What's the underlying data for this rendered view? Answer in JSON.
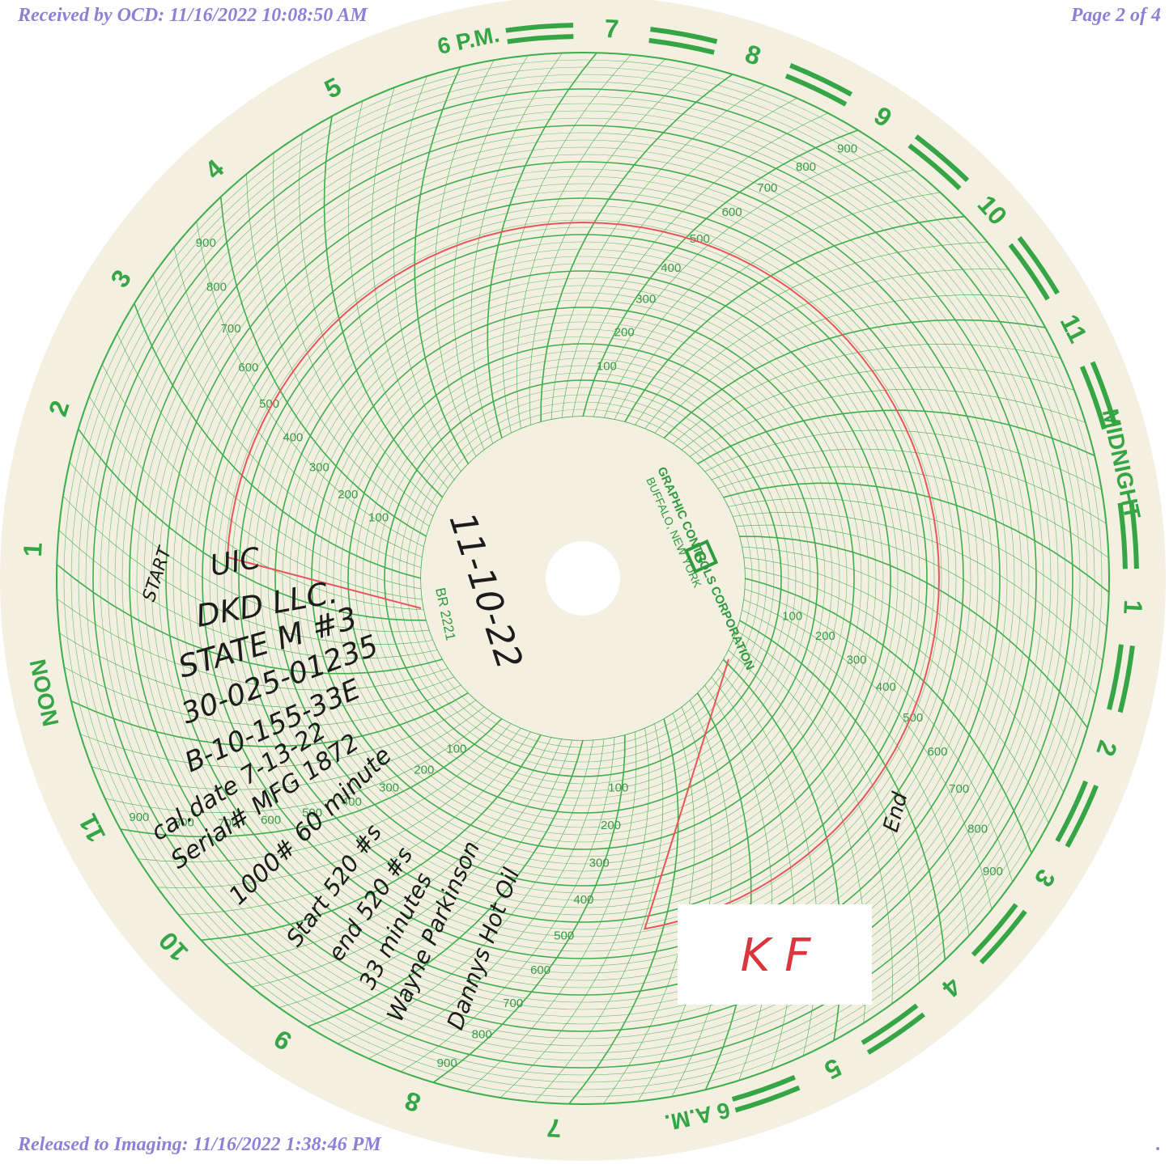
{
  "header": {
    "received": "Received by OCD: 11/16/2022 10:08:50 AM",
    "page": "Page 2 of 4"
  },
  "footer": {
    "released": "Released to Imaging: 11/16/2022 1:38:46 PM",
    "dot": "."
  },
  "chart": {
    "manufacturer_line1": "GRAPHIC CONTROLS CORPORATION",
    "manufacturer_line2": "BUFFALO, NEW YORK",
    "model": "BR 2221",
    "logo_letter": "G",
    "hour_labels": [
      "6 P.M.",
      "7",
      "8",
      "9",
      "10",
      "11",
      "MIDNIGHT",
      "1",
      "2",
      "3",
      "4",
      "5",
      "6 A.M.",
      "7",
      "8",
      "9",
      "10",
      "11",
      "NOON",
      "1",
      "2",
      "3",
      "4",
      "5"
    ],
    "scale_labels": [
      "100",
      "200",
      "300",
      "400",
      "500",
      "600",
      "700",
      "800",
      "900"
    ],
    "colors": {
      "grid": "#3fae4d",
      "trace": "#e8555a",
      "paper": "#f3efe1",
      "ink": "#1c1c1c",
      "stamp": "#8f7fd6"
    }
  },
  "handwriting": {
    "date": "11-10-22",
    "start_label": "START",
    "lines": [
      "UIC",
      "DKD LLC.",
      "STATE M #3",
      "30-025-01235",
      "B-10-155-33E",
      "cal.date 7-13-22",
      "Serial# MFG 1872",
      "1000# 60 minute",
      "Start 520 #s",
      "end 520 #s",
      "33 minutes",
      "Wayne Parkinson",
      "Dannys Hot Oil"
    ],
    "end_label": "End",
    "initials": "K F"
  }
}
